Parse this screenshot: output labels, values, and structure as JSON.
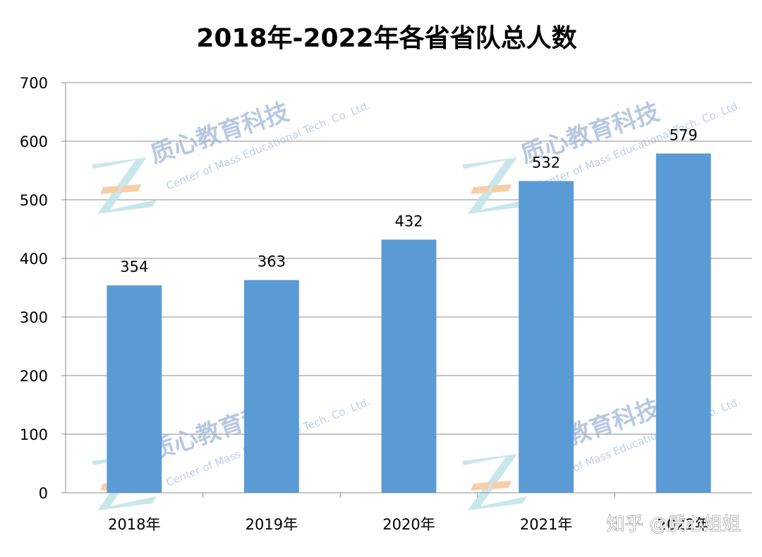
{
  "chart_data": {
    "type": "bar",
    "title": "2018年-2022年各省省队总人数",
    "categories": [
      "2018年",
      "2019年",
      "2020年",
      "2021年",
      "2022年"
    ],
    "values": [
      354,
      363,
      432,
      532,
      579
    ],
    "ylim": [
      0,
      700
    ],
    "yticks": [
      0,
      100,
      200,
      300,
      400,
      500,
      600,
      700
    ],
    "grid": true,
    "legend": "none",
    "bar_color": "#5b9bd5",
    "grid_color": "#8c8c8c",
    "data_labels": true
  },
  "watermark": {
    "cn": "质心教育科技",
    "en": "Center of Mass Educational Tech. Co. Ltd.",
    "logo_icon": "z-logo-icon",
    "colors": {
      "logo_teal": "#bfe3e8",
      "logo_orange": "#f7c69a",
      "text": "#9fb6d8"
    }
  },
  "overlay": {
    "source_mark": "知乎 @质心姐姐"
  }
}
